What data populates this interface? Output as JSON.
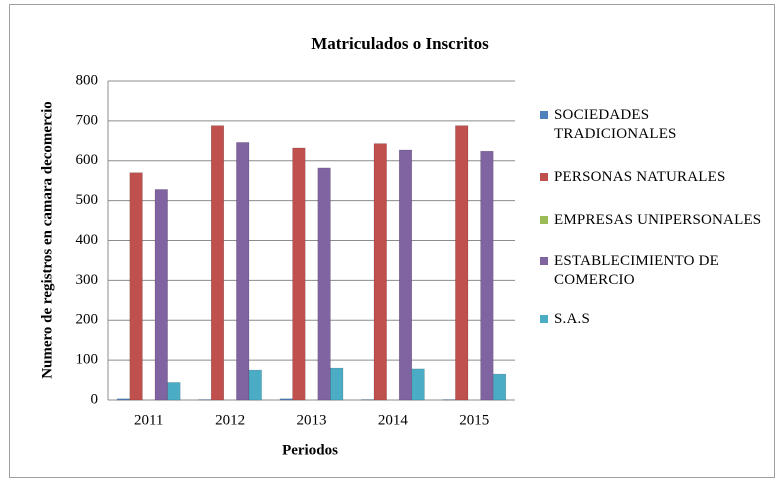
{
  "chart_data": {
    "type": "bar",
    "title": "Matriculados  o Inscritos",
    "x_label": "Periodos",
    "y_label": "Numero de registros en camara decomercio",
    "categories": [
      "2011",
      "2012",
      "2013",
      "2014",
      "2015"
    ],
    "series": [
      {
        "name": "SOCIEDADES TRADICIONALES",
        "color": "#4f81bd",
        "values": [
          3,
          1,
          3,
          1,
          1
        ]
      },
      {
        "name": "PERSONAS NATURALES",
        "color": "#c0504d",
        "values": [
          570,
          688,
          632,
          643,
          688
        ]
      },
      {
        "name": "EMPRESAS UNIPERSONALES",
        "color": "#9bbb59",
        "values": [
          0,
          0,
          0,
          0,
          0
        ]
      },
      {
        "name": "ESTABLECIMIENTO DE COMERCIO",
        "color": "#8064a2",
        "values": [
          528,
          646,
          582,
          627,
          624
        ]
      },
      {
        "name": "S.A.S",
        "color": "#4bacc6",
        "values": [
          44,
          75,
          80,
          78,
          65
        ]
      }
    ],
    "ylim": [
      0,
      800
    ],
    "yticks": [
      0,
      100,
      200,
      300,
      400,
      500,
      600,
      700,
      800
    ],
    "grid": true,
    "legend": "right"
  }
}
